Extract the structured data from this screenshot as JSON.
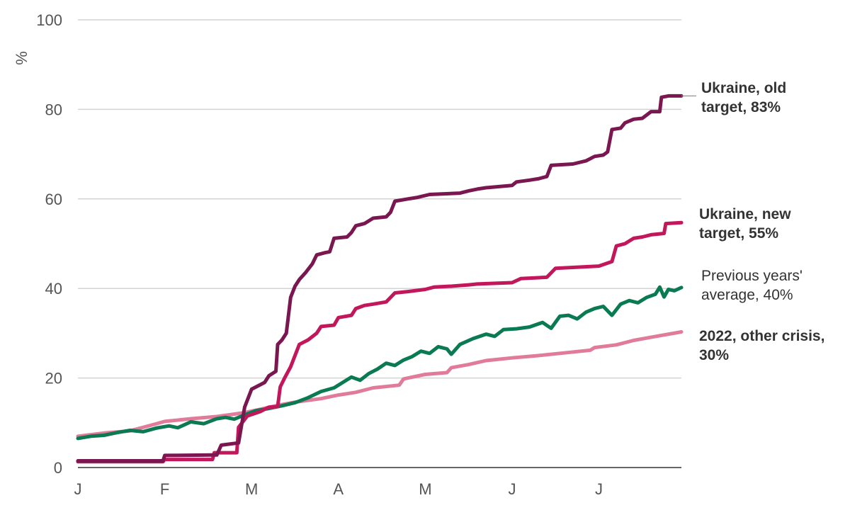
{
  "chart_data": {
    "type": "line",
    "ylabel": "%",
    "ylim": [
      0,
      100
    ],
    "yticks": [
      0,
      20,
      40,
      60,
      80,
      100
    ],
    "xlim": [
      0,
      6.95
    ],
    "xticks": [
      {
        "label": "J",
        "value": 0
      },
      {
        "label": "F",
        "value": 1
      },
      {
        "label": "M",
        "value": 2
      },
      {
        "label": "A",
        "value": 3
      },
      {
        "label": "M",
        "value": 4
      },
      {
        "label": "J",
        "value": 5
      },
      {
        "label": "J",
        "value": 6
      }
    ],
    "grid": true,
    "series": [
      {
        "key": "other_crisis",
        "color": "#e07b9a",
        "label_lines": [
          "2022, other crisis,",
          "30%"
        ],
        "label_bold": true,
        "points": [
          [
            0,
            7
          ],
          [
            0.3,
            7.7
          ],
          [
            0.6,
            8.2
          ],
          [
            0.85,
            9.5
          ],
          [
            1.0,
            10.3
          ],
          [
            1.3,
            10.9
          ],
          [
            1.6,
            11.4
          ],
          [
            1.9,
            12.2
          ],
          [
            2.1,
            13.0
          ],
          [
            2.3,
            13.9
          ],
          [
            2.5,
            14.6
          ],
          [
            2.8,
            15.4
          ],
          [
            3.0,
            16.2
          ],
          [
            3.2,
            16.8
          ],
          [
            3.4,
            17.8
          ],
          [
            3.7,
            18.4
          ],
          [
            3.75,
            19.8
          ],
          [
            4.0,
            20.8
          ],
          [
            4.25,
            21.2
          ],
          [
            4.3,
            22.3
          ],
          [
            4.5,
            23.0
          ],
          [
            4.7,
            23.9
          ],
          [
            5.0,
            24.5
          ],
          [
            5.3,
            25.0
          ],
          [
            5.6,
            25.6
          ],
          [
            5.9,
            26.2
          ],
          [
            5.95,
            26.8
          ],
          [
            6.2,
            27.4
          ],
          [
            6.4,
            28.4
          ],
          [
            6.6,
            29.1
          ],
          [
            6.95,
            30.3
          ]
        ]
      },
      {
        "key": "previous_years",
        "color": "#0a7a52",
        "label_lines": [
          "Previous years'",
          "average, 40%"
        ],
        "label_bold": false,
        "points": [
          [
            0,
            6.5
          ],
          [
            0.15,
            7.0
          ],
          [
            0.3,
            7.2
          ],
          [
            0.45,
            7.8
          ],
          [
            0.6,
            8.3
          ],
          [
            0.75,
            8.0
          ],
          [
            0.9,
            8.8
          ],
          [
            1.05,
            9.3
          ],
          [
            1.15,
            8.9
          ],
          [
            1.3,
            10.2
          ],
          [
            1.45,
            9.8
          ],
          [
            1.6,
            10.9
          ],
          [
            1.7,
            11.2
          ],
          [
            1.8,
            10.8
          ],
          [
            1.95,
            12.0
          ],
          [
            2.05,
            12.7
          ],
          [
            2.2,
            13.2
          ],
          [
            2.35,
            13.8
          ],
          [
            2.5,
            14.5
          ],
          [
            2.65,
            15.6
          ],
          [
            2.8,
            17.0
          ],
          [
            2.95,
            17.8
          ],
          [
            3.05,
            19.0
          ],
          [
            3.15,
            20.2
          ],
          [
            3.25,
            19.5
          ],
          [
            3.35,
            21.0
          ],
          [
            3.45,
            22.0
          ],
          [
            3.55,
            23.3
          ],
          [
            3.65,
            22.8
          ],
          [
            3.75,
            24.0
          ],
          [
            3.85,
            24.8
          ],
          [
            3.95,
            26.0
          ],
          [
            4.05,
            25.5
          ],
          [
            4.15,
            27.0
          ],
          [
            4.25,
            26.5
          ],
          [
            4.3,
            25.3
          ],
          [
            4.4,
            27.5
          ],
          [
            4.55,
            28.8
          ],
          [
            4.7,
            29.8
          ],
          [
            4.8,
            29.3
          ],
          [
            4.9,
            30.8
          ],
          [
            5.05,
            31.0
          ],
          [
            5.2,
            31.4
          ],
          [
            5.35,
            32.4
          ],
          [
            5.45,
            31.1
          ],
          [
            5.55,
            33.8
          ],
          [
            5.65,
            34.0
          ],
          [
            5.75,
            33.2
          ],
          [
            5.85,
            34.7
          ],
          [
            5.95,
            35.5
          ],
          [
            6.05,
            36.0
          ],
          [
            6.15,
            34.0
          ],
          [
            6.25,
            36.5
          ],
          [
            6.35,
            37.3
          ],
          [
            6.45,
            36.8
          ],
          [
            6.55,
            38.0
          ],
          [
            6.65,
            38.7
          ],
          [
            6.7,
            40.3
          ],
          [
            6.75,
            38.1
          ],
          [
            6.8,
            39.8
          ],
          [
            6.87,
            39.5
          ],
          [
            6.95,
            40.2
          ]
        ]
      },
      {
        "key": "ukraine_new",
        "color": "#c2185b",
        "label_lines": [
          "Ukraine, new",
          "target, 55%"
        ],
        "label_bold": true,
        "points": [
          [
            0,
            1.3
          ],
          [
            0.98,
            1.3
          ],
          [
            1.0,
            1.8
          ],
          [
            1.55,
            1.8
          ],
          [
            1.57,
            3.3
          ],
          [
            1.83,
            3.3
          ],
          [
            1.85,
            9.0
          ],
          [
            1.95,
            11.5
          ],
          [
            2.1,
            12.5
          ],
          [
            2.2,
            13.5
          ],
          [
            2.3,
            13.6
          ],
          [
            2.33,
            18.0
          ],
          [
            2.38,
            20.0
          ],
          [
            2.45,
            22.5
          ],
          [
            2.55,
            27.5
          ],
          [
            2.65,
            28.5
          ],
          [
            2.75,
            30.0
          ],
          [
            2.8,
            31.5
          ],
          [
            2.95,
            31.8
          ],
          [
            3.0,
            33.5
          ],
          [
            3.15,
            34.0
          ],
          [
            3.2,
            35.5
          ],
          [
            3.3,
            36.2
          ],
          [
            3.4,
            36.5
          ],
          [
            3.55,
            37.0
          ],
          [
            3.65,
            39.0
          ],
          [
            3.8,
            39.3
          ],
          [
            4.0,
            39.8
          ],
          [
            4.1,
            40.3
          ],
          [
            4.3,
            40.5
          ],
          [
            4.5,
            40.8
          ],
          [
            4.6,
            41.0
          ],
          [
            5.0,
            41.3
          ],
          [
            5.1,
            42.2
          ],
          [
            5.4,
            42.5
          ],
          [
            5.5,
            44.5
          ],
          [
            5.8,
            44.8
          ],
          [
            6.0,
            45.0
          ],
          [
            6.15,
            46.0
          ],
          [
            6.2,
            49.5
          ],
          [
            6.3,
            50.0
          ],
          [
            6.4,
            51.2
          ],
          [
            6.5,
            51.5
          ],
          [
            6.6,
            52.0
          ],
          [
            6.75,
            52.3
          ],
          [
            6.77,
            54.5
          ],
          [
            6.95,
            54.7
          ]
        ]
      },
      {
        "key": "ukraine_old",
        "color": "#7b1750",
        "label_lines": [
          "Ukraine, old",
          "target, 83%"
        ],
        "label_bold": true,
        "points": [
          [
            0,
            1.5
          ],
          [
            0.98,
            1.5
          ],
          [
            1.0,
            2.7
          ],
          [
            1.55,
            2.8
          ],
          [
            1.6,
            2.8
          ],
          [
            1.65,
            5.0
          ],
          [
            1.85,
            5.5
          ],
          [
            1.92,
            13.5
          ],
          [
            2.0,
            17.5
          ],
          [
            2.1,
            18.5
          ],
          [
            2.15,
            19.0
          ],
          [
            2.2,
            20.5
          ],
          [
            2.28,
            21.5
          ],
          [
            2.3,
            27.5
          ],
          [
            2.35,
            28.5
          ],
          [
            2.4,
            30.0
          ],
          [
            2.45,
            38.0
          ],
          [
            2.5,
            40.5
          ],
          [
            2.55,
            42.0
          ],
          [
            2.62,
            43.5
          ],
          [
            2.7,
            45.5
          ],
          [
            2.75,
            47.5
          ],
          [
            2.85,
            48.0
          ],
          [
            2.9,
            48.2
          ],
          [
            2.95,
            51.2
          ],
          [
            3.1,
            51.5
          ],
          [
            3.15,
            52.5
          ],
          [
            3.2,
            54.0
          ],
          [
            3.3,
            54.5
          ],
          [
            3.4,
            55.7
          ],
          [
            3.55,
            56.0
          ],
          [
            3.6,
            57.0
          ],
          [
            3.65,
            59.5
          ],
          [
            3.8,
            60.0
          ],
          [
            3.9,
            60.3
          ],
          [
            4.05,
            61.0
          ],
          [
            4.4,
            61.3
          ],
          [
            4.5,
            61.8
          ],
          [
            4.6,
            62.2
          ],
          [
            4.7,
            62.5
          ],
          [
            5.0,
            63.0
          ],
          [
            5.05,
            63.8
          ],
          [
            5.2,
            64.2
          ],
          [
            5.3,
            64.5
          ],
          [
            5.4,
            65.0
          ],
          [
            5.45,
            67.5
          ],
          [
            5.7,
            67.8
          ],
          [
            5.85,
            68.5
          ],
          [
            5.95,
            69.5
          ],
          [
            6.05,
            69.8
          ],
          [
            6.1,
            70.5
          ],
          [
            6.15,
            75.5
          ],
          [
            6.25,
            75.8
          ],
          [
            6.3,
            77.0
          ],
          [
            6.4,
            77.8
          ],
          [
            6.5,
            78.0
          ],
          [
            6.6,
            79.5
          ],
          [
            6.7,
            79.5
          ],
          [
            6.72,
            82.7
          ],
          [
            6.8,
            83.0
          ],
          [
            6.95,
            83.0
          ]
        ]
      }
    ]
  }
}
